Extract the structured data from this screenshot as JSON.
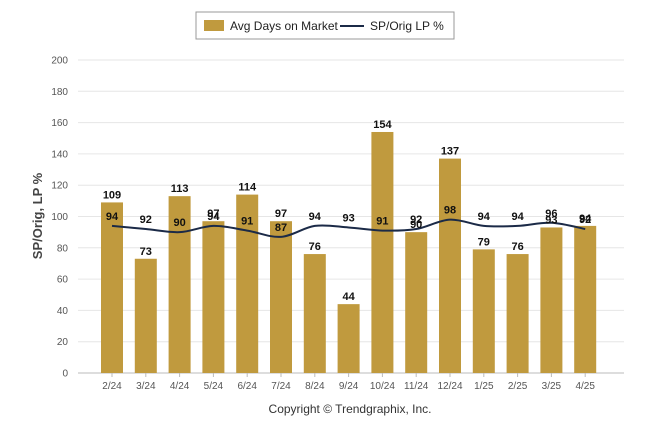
{
  "chart_data": {
    "type": "bar",
    "categories": [
      "2/24",
      "3/24",
      "4/24",
      "5/24",
      "6/24",
      "7/24",
      "8/24",
      "9/24",
      "10/24",
      "11/24",
      "12/24",
      "1/25",
      "2/25",
      "3/25",
      "4/25"
    ],
    "series": [
      {
        "name": "Avg Days on Market",
        "type": "bar",
        "color": "#C09A3E",
        "values": [
          109,
          73,
          113,
          97,
          114,
          97,
          76,
          44,
          154,
          90,
          137,
          79,
          76,
          93,
          94
        ]
      },
      {
        "name": "SP/Orig LP %",
        "type": "line",
        "color": "#1B2A47",
        "values": [
          94,
          92,
          90,
          94,
          91,
          87,
          94,
          93,
          91,
          92,
          98,
          94,
          94,
          96,
          92
        ]
      }
    ],
    "ylabel": "SP/Orig, LP %",
    "xlabel": "",
    "ylim": [
      0,
      200
    ],
    "yticks": [
      0,
      20,
      40,
      60,
      80,
      100,
      120,
      140,
      160,
      180,
      200
    ],
    "grid": true,
    "legend_position": "top-center"
  },
  "footer": "Copyright © Trendgraphix, Inc."
}
